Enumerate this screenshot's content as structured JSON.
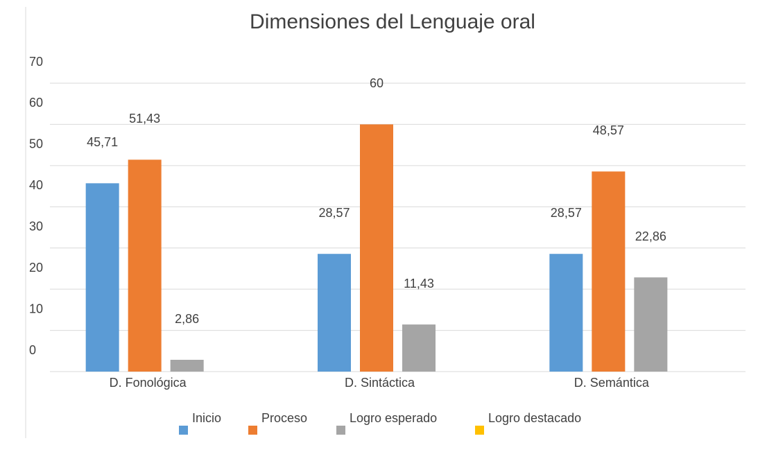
{
  "chart_data": {
    "type": "bar",
    "title": "Dimensiones del Lenguaje oral",
    "categories": [
      "D. Fonológica",
      "D. Sintáctica",
      "D. Semántica"
    ],
    "series": [
      {
        "name": "Inicio",
        "color": "#5b9bd5",
        "values": [
          45.71,
          28.57,
          28.57
        ],
        "value_labels": [
          "45,71",
          "28,57",
          "28,57"
        ]
      },
      {
        "name": "Proceso",
        "color": "#ed7d31",
        "values": [
          51.43,
          60,
          48.57
        ],
        "value_labels": [
          "51,43",
          "60",
          "48,57"
        ]
      },
      {
        "name": "Logro esperado",
        "color": "#a5a5a5",
        "values": [
          2.86,
          11.43,
          22.86
        ],
        "value_labels": [
          "2,86",
          "11,43",
          "22,86"
        ]
      },
      {
        "name": "Logro destacado",
        "color": "#ffc000",
        "values": [
          0,
          0,
          0
        ]
      }
    ],
    "ylim": [
      0,
      70
    ],
    "yticks": [
      0,
      10,
      20,
      30,
      40,
      50,
      60,
      70
    ],
    "grid": true,
    "legend": "bottom"
  }
}
